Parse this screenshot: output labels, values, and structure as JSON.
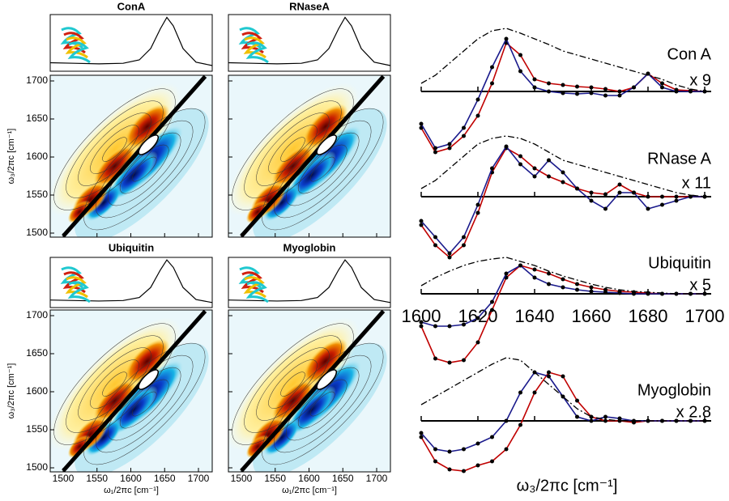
{
  "panels": [
    {
      "title": "ConA"
    },
    {
      "title": "RNaseA"
    },
    {
      "title": "Ubiquitin"
    },
    {
      "title": "Myoglobin"
    }
  ],
  "map_axes": {
    "x_label": "ω₁/2πc [cm⁻¹]",
    "y_label": "ω₃/2πc [cm⁻¹]",
    "xlim": [
      1500,
      1700
    ],
    "ylim": [
      1500,
      1700
    ],
    "xticks": [
      1500,
      1550,
      1600,
      1650,
      1700
    ],
    "yticks": [
      1500,
      1550,
      1600,
      1650,
      1700
    ]
  },
  "chart_data": {
    "type": "line",
    "x_label": "ω₃/2πc [cm⁻¹]",
    "xlim": [
      1600,
      1700
    ],
    "xticks": [
      1600,
      1620,
      1640,
      1660,
      1680,
      1700
    ],
    "x": [
      1600,
      1605,
      1610,
      1615,
      1620,
      1625,
      1630,
      1635,
      1640,
      1645,
      1650,
      1655,
      1660,
      1665,
      1670,
      1675,
      1680,
      1685,
      1690,
      1695,
      1700
    ],
    "spectra": [
      {
        "name": "Con A",
        "scale": "x 9",
        "series": [
          {
            "color": "#c00000",
            "values": [
              -45,
              -75,
              -70,
              -55,
              -30,
              10,
              60,
              45,
              15,
              10,
              8,
              6,
              5,
              3,
              0,
              5,
              22,
              10,
              2,
              1,
              0
            ]
          },
          {
            "color": "#1a1a8c",
            "values": [
              -40,
              -70,
              -65,
              -45,
              -10,
              30,
              65,
              25,
              5,
              0,
              -2,
              -3,
              -2,
              -5,
              -5,
              5,
              22,
              5,
              0,
              0,
              0
            ]
          },
          {
            "color": "#000000",
            "dashed": true,
            "values": [
              10,
              20,
              35,
              50,
              65,
              75,
              78,
              72,
              65,
              58,
              50,
              45,
              40,
              35,
              30,
              25,
              20,
              15,
              8,
              3,
              0
            ]
          }
        ]
      },
      {
        "name": "RNase A",
        "scale": "x 11",
        "series": [
          {
            "color": "#c00000",
            "values": [
              -35,
              -60,
              -75,
              -60,
              -20,
              30,
              60,
              50,
              35,
              25,
              18,
              10,
              5,
              3,
              15,
              5,
              0,
              0,
              0,
              0,
              0
            ]
          },
          {
            "color": "#1a1a8c",
            "values": [
              -30,
              -50,
              -70,
              -50,
              -10,
              35,
              62,
              40,
              25,
              45,
              30,
              10,
              -5,
              -15,
              5,
              5,
              -15,
              -10,
              -5,
              0,
              0
            ]
          },
          {
            "color": "#000000",
            "dashed": true,
            "values": [
              10,
              20,
              35,
              50,
              65,
              72,
              75,
              72,
              65,
              55,
              45,
              40,
              35,
              30,
              25,
              20,
              15,
              10,
              5,
              2,
              0
            ]
          }
        ]
      },
      {
        "name": "Ubiquitin",
        "scale": "x 5",
        "series": [
          {
            "color": "#c00000",
            "values": [
              -40,
              -80,
              -85,
              -82,
              -60,
              -20,
              20,
              35,
              30,
              25,
              18,
              12,
              8,
              5,
              3,
              2,
              1,
              0,
              0,
              0,
              0
            ]
          },
          {
            "color": "#1a1a8c",
            "values": [
              -35,
              -40,
              -40,
              -38,
              -30,
              -10,
              25,
              35,
              20,
              12,
              8,
              5,
              3,
              2,
              1,
              0,
              0,
              0,
              0,
              0,
              0
            ]
          },
          {
            "color": "#000000",
            "dashed": true,
            "values": [
              10,
              20,
              28,
              35,
              40,
              43,
              45,
              40,
              35,
              28,
              22,
              17,
              12,
              8,
              5,
              3,
              2,
              1,
              0,
              0,
              0
            ]
          }
        ]
      },
      {
        "name": "Myoglobin",
        "scale": "x 2.8",
        "series": [
          {
            "color": "#c00000",
            "values": [
              -20,
              -50,
              -60,
              -62,
              -55,
              -50,
              -35,
              -5,
              35,
              60,
              55,
              25,
              5,
              0,
              0,
              -2,
              0,
              0,
              0,
              0,
              0
            ]
          },
          {
            "color": "#1a1a8c",
            "values": [
              -15,
              -35,
              -38,
              -35,
              -28,
              -20,
              0,
              35,
              60,
              55,
              30,
              5,
              0,
              5,
              3,
              0,
              0,
              0,
              0,
              0,
              0
            ]
          },
          {
            "color": "#000000",
            "dashed": true,
            "values": [
              20,
              30,
              40,
              50,
              60,
              70,
              78,
              75,
              60,
              45,
              30,
              15,
              5,
              2,
              0,
              0,
              0,
              0,
              0,
              0,
              0
            ]
          }
        ]
      }
    ]
  }
}
